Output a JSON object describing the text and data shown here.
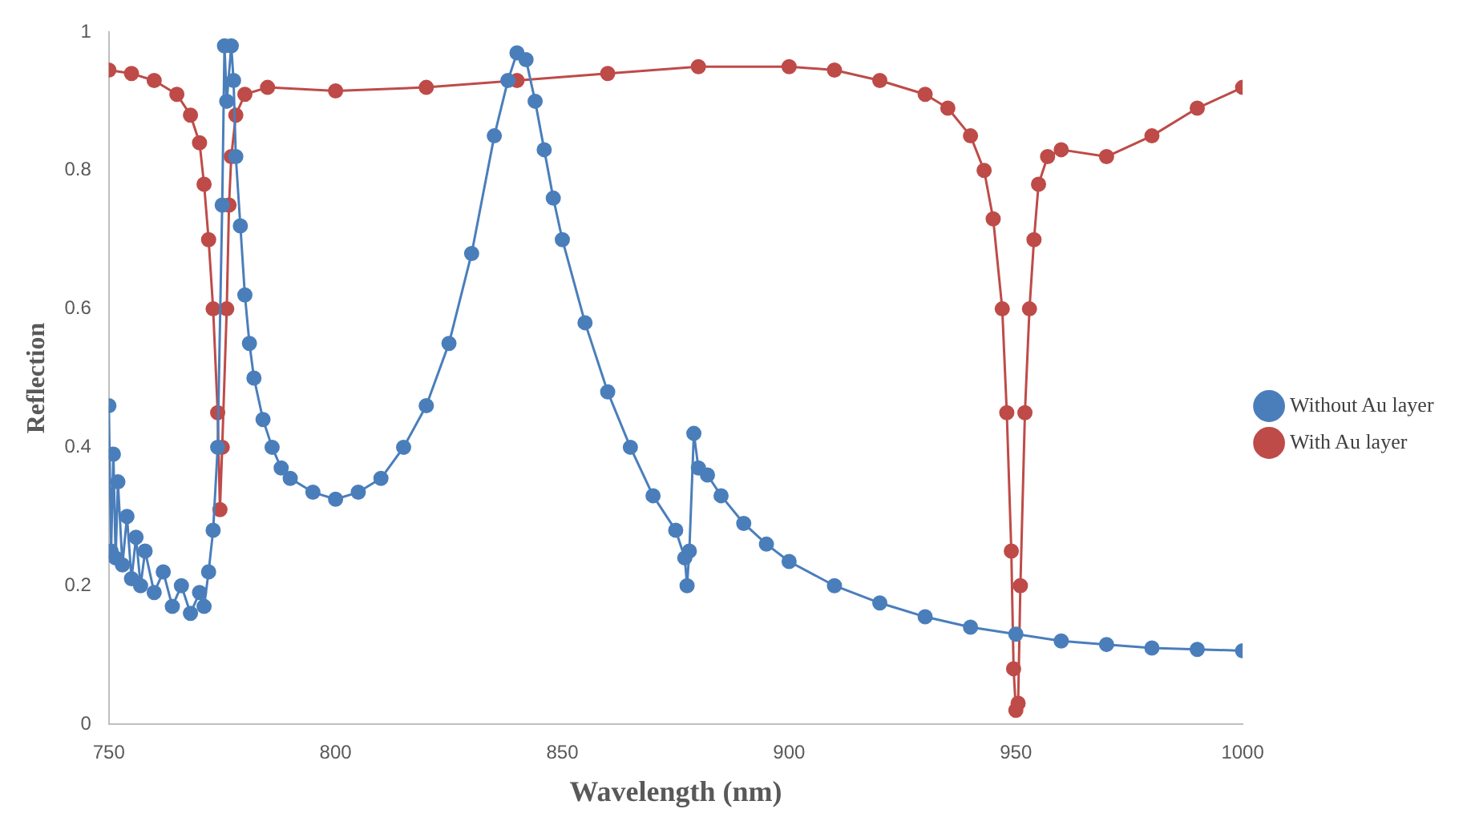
{
  "chart_data": {
    "type": "line",
    "xlabel": "Wavelength (nm)",
    "ylabel": "Reflection",
    "xlim": [
      750,
      1000
    ],
    "xticks": [
      750,
      800,
      850,
      900,
      950,
      1000
    ],
    "ylim": [
      0,
      1
    ],
    "yticks": [
      0,
      0.2,
      0.4,
      0.6,
      0.8,
      1
    ],
    "grid": false,
    "legend": "right",
    "marker": "circle",
    "line_style": "solid",
    "series": [
      {
        "name": "Without Au layer",
        "color": "#4a7ebb",
        "x": [
          750,
          750.5,
          751,
          751.5,
          752,
          753,
          754,
          755,
          756,
          757,
          758,
          760,
          762,
          764,
          766,
          768,
          770,
          771,
          772,
          773,
          774,
          775,
          775.5,
          776,
          777,
          777.5,
          778,
          779,
          780,
          781,
          782,
          784,
          786,
          788,
          790,
          795,
          800,
          805,
          810,
          815,
          820,
          825,
          830,
          835,
          838,
          840,
          842,
          844,
          846,
          848,
          850,
          855,
          860,
          865,
          870,
          875,
          877,
          877.5,
          878,
          879,
          880,
          882,
          885,
          890,
          895,
          900,
          910,
          920,
          930,
          940,
          950,
          960,
          970,
          980,
          990,
          1000
        ],
        "values": [
          0.46,
          0.25,
          0.39,
          0.24,
          0.35,
          0.23,
          0.3,
          0.21,
          0.27,
          0.2,
          0.25,
          0.19,
          0.22,
          0.17,
          0.2,
          0.16,
          0.19,
          0.17,
          0.22,
          0.28,
          0.4,
          0.75,
          0.98,
          0.9,
          0.98,
          0.93,
          0.82,
          0.72,
          0.62,
          0.55,
          0.5,
          0.44,
          0.4,
          0.37,
          0.355,
          0.335,
          0.325,
          0.335,
          0.355,
          0.4,
          0.46,
          0.55,
          0.68,
          0.85,
          0.93,
          0.97,
          0.96,
          0.9,
          0.83,
          0.76,
          0.7,
          0.58,
          0.48,
          0.4,
          0.33,
          0.28,
          0.24,
          0.2,
          0.25,
          0.42,
          0.37,
          0.36,
          0.33,
          0.29,
          0.26,
          0.235,
          0.2,
          0.175,
          0.155,
          0.14,
          0.13,
          0.12,
          0.115,
          0.11,
          0.108,
          0.106
        ]
      },
      {
        "name": "With Au layer",
        "color": "#be4b48",
        "x": [
          750,
          755,
          760,
          765,
          768,
          770,
          771,
          772,
          773,
          774,
          774.5,
          775,
          776,
          776.5,
          777,
          778,
          780,
          785,
          800,
          820,
          840,
          860,
          880,
          900,
          910,
          920,
          930,
          935,
          940,
          943,
          945,
          947,
          948,
          949,
          949.5,
          950,
          950.5,
          951,
          952,
          953,
          954,
          955,
          957,
          960,
          970,
          980,
          990,
          1000
        ],
        "values": [
          0.945,
          0.94,
          0.93,
          0.91,
          0.88,
          0.84,
          0.78,
          0.7,
          0.6,
          0.45,
          0.31,
          0.4,
          0.6,
          0.75,
          0.82,
          0.88,
          0.91,
          0.92,
          0.915,
          0.92,
          0.93,
          0.94,
          0.95,
          0.95,
          0.945,
          0.93,
          0.91,
          0.89,
          0.85,
          0.8,
          0.73,
          0.6,
          0.45,
          0.25,
          0.08,
          0.02,
          0.03,
          0.2,
          0.45,
          0.6,
          0.7,
          0.78,
          0.82,
          0.83,
          0.82,
          0.85,
          0.89,
          0.92
        ]
      }
    ]
  }
}
